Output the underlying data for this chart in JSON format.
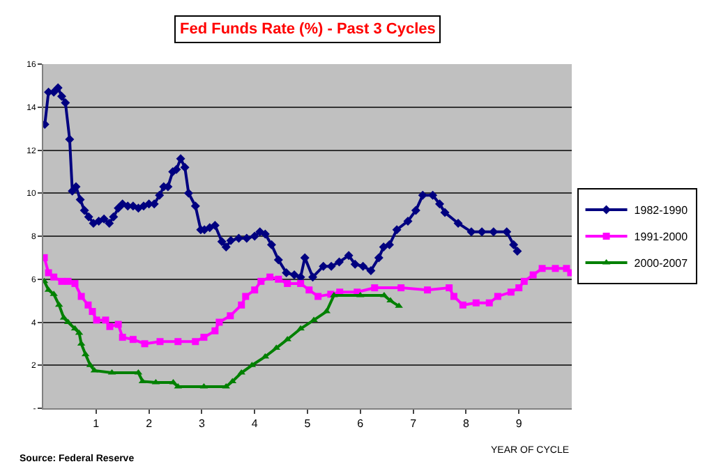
{
  "chart_data": {
    "type": "line",
    "title": "Fed Funds Rate (%) - Past 3 Cycles",
    "xlabel": "YEAR OF CYCLE",
    "annotations": [
      "Source: Federal Reserve"
    ],
    "xlim": [
      0,
      10
    ],
    "xticks": [
      1,
      2,
      3,
      4,
      5,
      6,
      7,
      8,
      9
    ],
    "ylim": [
      0,
      16
    ],
    "yticks": [
      {
        "value": 0,
        "label": "-"
      },
      2,
      4,
      6,
      8,
      10,
      12,
      14,
      16
    ],
    "grid": "y",
    "legend": "right",
    "line_style": "solid",
    "series": [
      {
        "name": "1982-1990",
        "color": "#000080",
        "marker": "diamond",
        "x": [
          0.03,
          0.1,
          0.2,
          0.28,
          0.35,
          0.42,
          0.5,
          0.55,
          0.62,
          0.7,
          0.78,
          0.86,
          0.95,
          1.05,
          1.15,
          1.25,
          1.33,
          1.42,
          1.5,
          1.6,
          1.7,
          1.8,
          1.9,
          2.0,
          2.1,
          2.2,
          2.28,
          2.36,
          2.45,
          2.52,
          2.6,
          2.68,
          2.75,
          2.88,
          2.98,
          3.05,
          3.15,
          3.25,
          3.38,
          3.46,
          3.55,
          3.7,
          3.85,
          4.0,
          4.1,
          4.2,
          4.32,
          4.45,
          4.6,
          4.75,
          4.87,
          4.95,
          5.1,
          5.3,
          5.45,
          5.6,
          5.78,
          5.9,
          6.05,
          6.2,
          6.35,
          6.44,
          6.55,
          6.69,
          6.9,
          7.05,
          7.18,
          7.37,
          7.5,
          7.6,
          7.85,
          8.1,
          8.3,
          8.52,
          8.77,
          8.9,
          8.97
        ],
        "values": [
          13.2,
          14.7,
          14.7,
          14.9,
          14.5,
          14.2,
          12.5,
          10.1,
          10.3,
          9.7,
          9.2,
          8.9,
          8.6,
          8.7,
          8.8,
          8.6,
          8.9,
          9.3,
          9.5,
          9.4,
          9.4,
          9.3,
          9.4,
          9.5,
          9.5,
          9.9,
          10.3,
          10.3,
          11.0,
          11.1,
          11.6,
          11.2,
          10.0,
          9.4,
          8.3,
          8.3,
          8.4,
          8.5,
          7.75,
          7.5,
          7.8,
          7.9,
          7.9,
          8.0,
          8.2,
          8.1,
          7.6,
          6.9,
          6.3,
          6.2,
          6.1,
          7.0,
          6.1,
          6.6,
          6.6,
          6.8,
          7.1,
          6.7,
          6.6,
          6.4,
          7.0,
          7.5,
          7.6,
          8.3,
          8.7,
          9.2,
          9.9,
          9.9,
          9.5,
          9.1,
          8.6,
          8.2,
          8.2,
          8.2,
          8.2,
          7.6,
          7.3
        ]
      },
      {
        "name": "1991-2000",
        "color": "#ff00ff",
        "marker": "square",
        "x": [
          0.02,
          0.1,
          0.2,
          0.35,
          0.47,
          0.6,
          0.72,
          0.85,
          0.93,
          1.01,
          1.18,
          1.26,
          1.42,
          1.5,
          1.7,
          1.92,
          2.21,
          2.55,
          2.88,
          3.04,
          3.25,
          3.33,
          3.54,
          3.75,
          3.83,
          4.0,
          4.12,
          4.29,
          4.45,
          4.62,
          4.87,
          5.03,
          5.2,
          5.44,
          5.61,
          5.94,
          6.27,
          6.77,
          7.27,
          7.68,
          7.77,
          7.94,
          8.19,
          8.44,
          8.6,
          8.85,
          9.0,
          9.1,
          9.27,
          9.44,
          9.69,
          9.9,
          9.98
        ],
        "values": [
          7.0,
          6.3,
          6.1,
          5.9,
          5.9,
          5.8,
          5.2,
          4.8,
          4.5,
          4.1,
          4.1,
          3.8,
          3.9,
          3.3,
          3.2,
          3.0,
          3.1,
          3.1,
          3.1,
          3.3,
          3.6,
          4.0,
          4.3,
          4.8,
          5.2,
          5.5,
          5.9,
          6.1,
          6.0,
          5.8,
          5.8,
          5.5,
          5.2,
          5.3,
          5.4,
          5.4,
          5.6,
          5.6,
          5.5,
          5.6,
          5.2,
          4.8,
          4.9,
          4.9,
          5.2,
          5.4,
          5.6,
          5.9,
          6.2,
          6.5,
          6.5,
          6.5,
          6.3
        ]
      },
      {
        "name": "2000-2007",
        "color": "#008000",
        "marker": "triangle",
        "x": [
          0.02,
          0.1,
          0.2,
          0.3,
          0.39,
          0.47,
          0.6,
          0.68,
          0.72,
          0.8,
          0.89,
          0.97,
          1.3,
          1.8,
          1.88,
          2.13,
          2.46,
          2.55,
          3.04,
          3.46,
          3.58,
          3.75,
          3.95,
          4.2,
          4.41,
          4.62,
          4.87,
          5.12,
          5.36,
          5.5,
          6.0,
          6.45,
          6.57,
          6.73
        ],
        "values": [
          5.9,
          5.5,
          5.3,
          4.8,
          4.2,
          4.0,
          3.7,
          3.5,
          3.0,
          2.5,
          2.0,
          1.75,
          1.65,
          1.65,
          1.25,
          1.2,
          1.2,
          1.0,
          1.0,
          1.0,
          1.25,
          1.65,
          2.0,
          2.4,
          2.8,
          3.2,
          3.7,
          4.1,
          4.5,
          5.25,
          5.25,
          5.25,
          5.0,
          4.75
        ]
      }
    ]
  }
}
